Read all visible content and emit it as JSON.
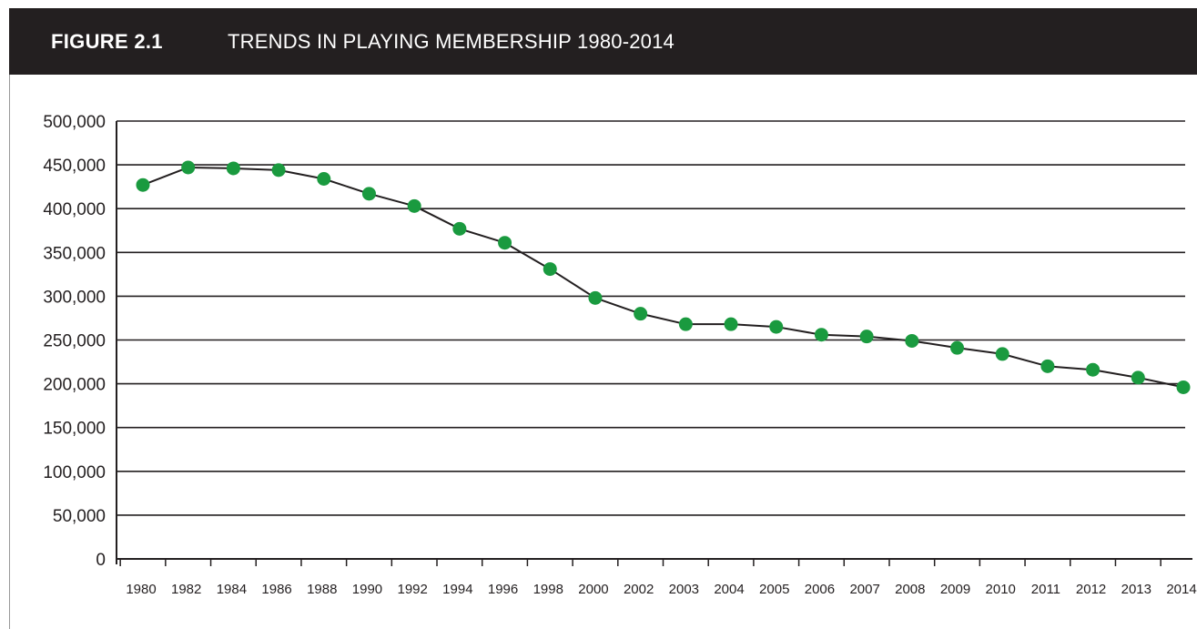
{
  "header": {
    "figure_label": "FIGURE 2.1",
    "title": "TRENDS IN PLAYING MEMBERSHIP 1980-2014"
  },
  "colors": {
    "header_bg": "#231f20",
    "marker": "#1a9a3f",
    "line": "#231f20",
    "grid": "#231f20"
  },
  "chart_data": {
    "type": "line",
    "title": "TRENDS IN PLAYING MEMBERSHIP 1980-2014",
    "xlabel": "",
    "ylabel": "",
    "ylim": [
      0,
      500000
    ],
    "yticks": [
      "0",
      "50,000",
      "100,000",
      "150,000",
      "200,000",
      "250,000",
      "300,000",
      "350,000",
      "400,000",
      "450,000",
      "500,000"
    ],
    "grid": true,
    "legend": "none",
    "categories": [
      "1980",
      "1982",
      "1984",
      "1986",
      "1988",
      "1990",
      "1992",
      "1994",
      "1996",
      "1998",
      "2000",
      "2002",
      "2003",
      "2004",
      "2005",
      "2006",
      "2007",
      "2008",
      "2009",
      "2010",
      "2011",
      "2012",
      "2013",
      "2014"
    ],
    "series": [
      {
        "values": [
          427000,
          447000,
          446000,
          444000,
          434000,
          417000,
          403000,
          377000,
          361000,
          331000,
          298000,
          280000,
          268000,
          268000,
          265000,
          256000,
          254000,
          249000,
          241000,
          234000,
          220000,
          216000,
          207000,
          196000
        ]
      }
    ]
  }
}
